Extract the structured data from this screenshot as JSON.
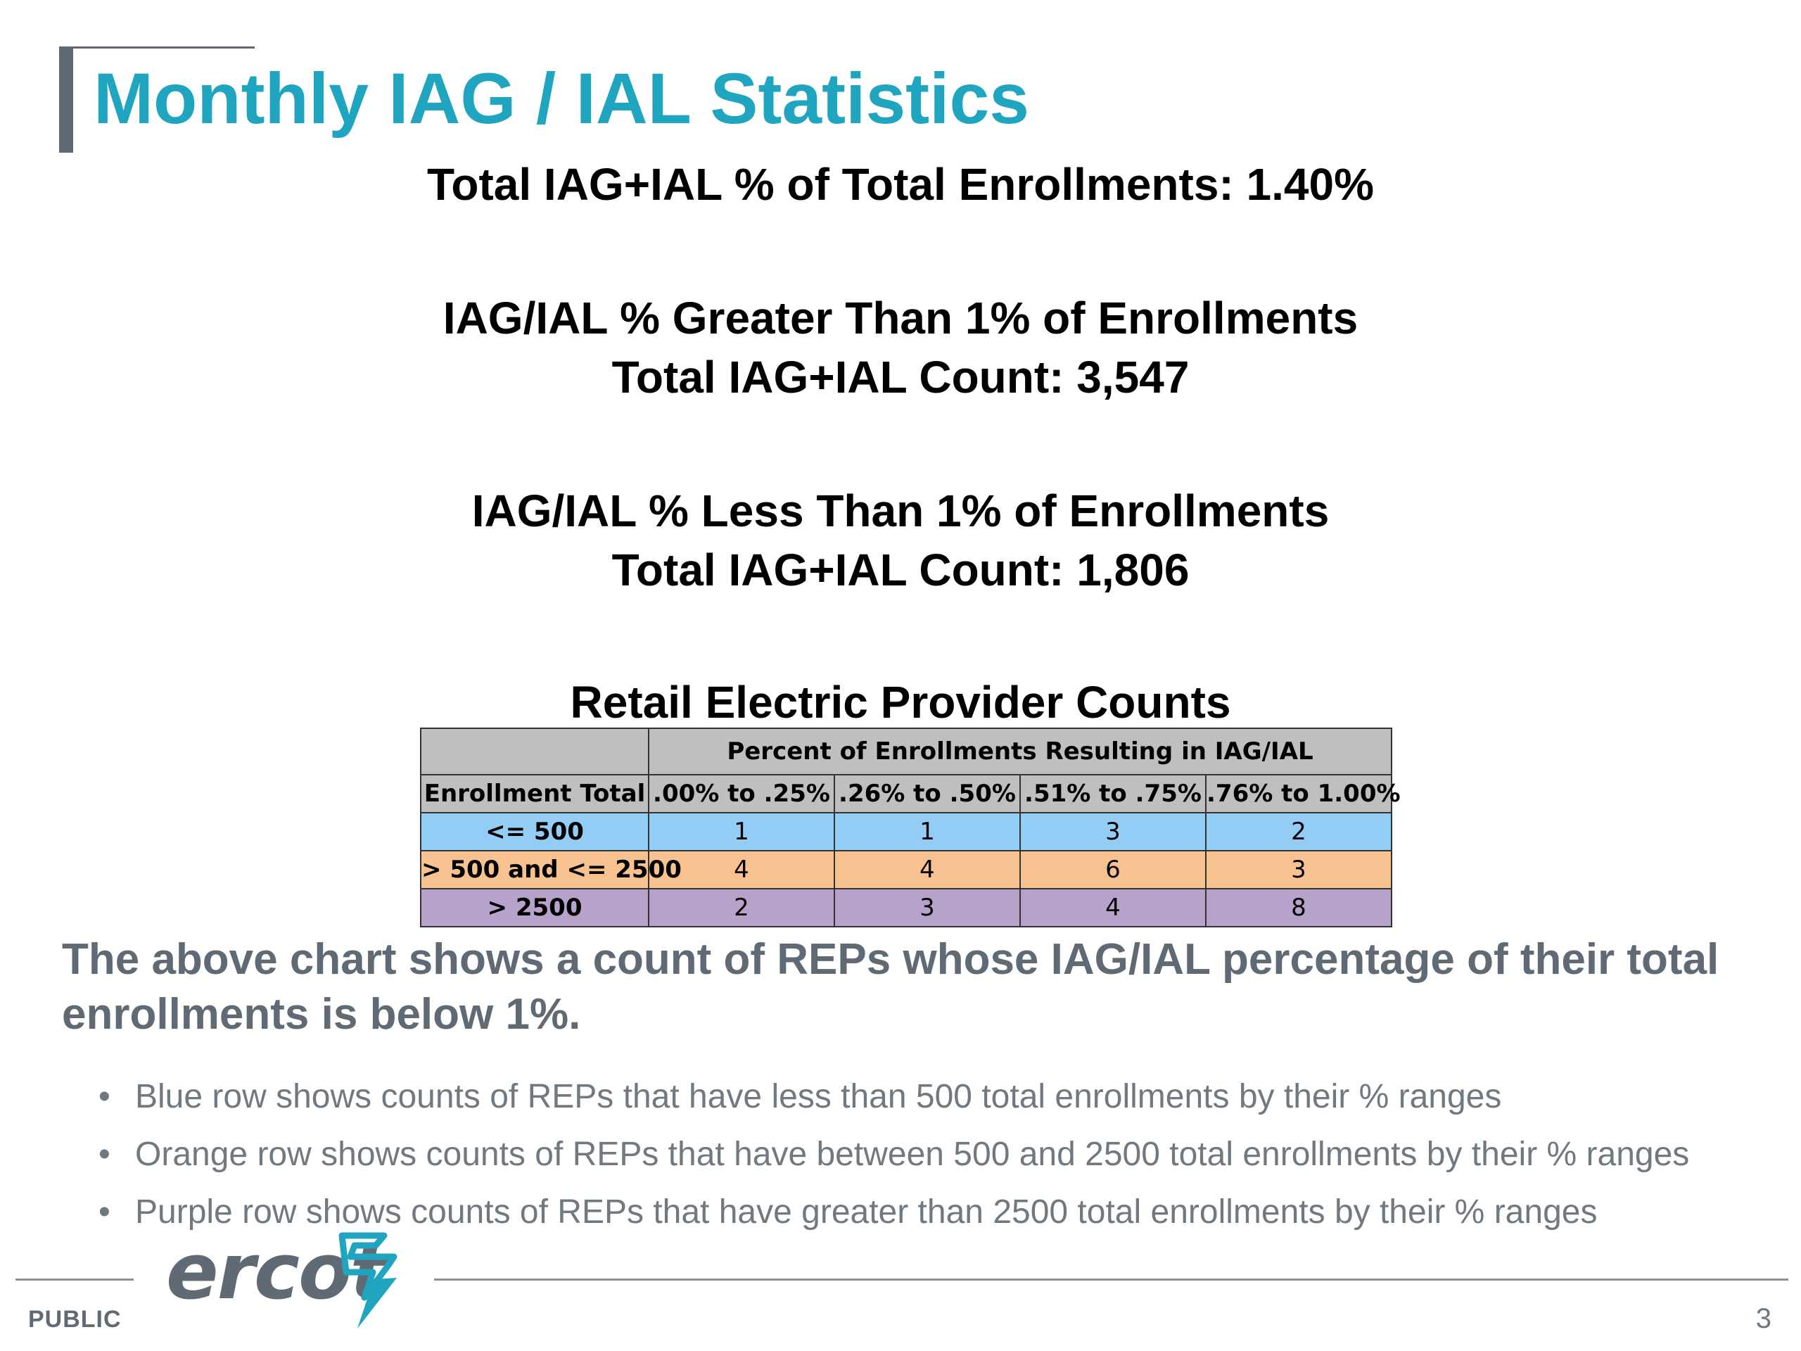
{
  "slide": {
    "title": "Monthly IAG / IAL Statistics",
    "total_pct": "Total IAG+IAL % of Total Enrollments: 1.40%",
    "greater_heading": "IAG/IAL % Greater Than 1% of Enrollments",
    "greater_count": "Total IAG+IAL Count: 3,547",
    "less_heading": "IAG/IAL % Less Than 1% of Enrollments",
    "less_count": "Total IAG+IAL Count: 1,806"
  },
  "rep_table": {
    "title": "Retail Electric Provider Counts",
    "group_header": "Percent of Enrollments Resulting in IAG/IAL",
    "columns": [
      "Enrollment Total",
      ".00% to .25%",
      ".26% to .50%",
      ".51% to .75%",
      ".76% to 1.00%"
    ],
    "rows": [
      {
        "label": "<= 500",
        "values": [
          "1",
          "1",
          "3",
          "2"
        ],
        "color": "#93cdf6"
      },
      {
        "label": "> 500 and <= 2500",
        "values": [
          "4",
          "4",
          "6",
          "3"
        ],
        "color": "#f8c290"
      },
      {
        "label": "> 2500",
        "values": [
          "2",
          "3",
          "4",
          "8"
        ],
        "color": "#b7a2cc"
      }
    ]
  },
  "summary": "The above chart shows a count of REPs whose IAG/IAL percentage of their total enrollments is below 1%.",
  "bullets": [
    "Blue row shows counts of REPs that have less than 500 total enrollments by their % ranges",
    "Orange row shows counts of REPs that have between 500 and 2500 total enrollments by their % ranges",
    "Purple row shows counts of REPs that have greater than 2500 total enrollments by their % ranges"
  ],
  "footer": {
    "logo_text": "ercot",
    "logo_icon": "lightning-bolt-icon",
    "classification": "PUBLIC",
    "page_number": "3"
  },
  "colors": {
    "title": "#1fa5bf",
    "accent_gray": "#5f6a74"
  }
}
